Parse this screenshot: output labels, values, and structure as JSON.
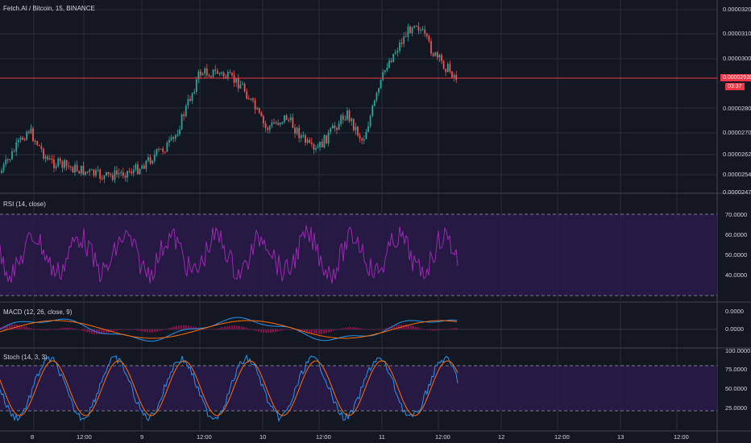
{
  "header": {
    "symbol_line": "Fetch.AI / Bitcoin, 15, BINANCE"
  },
  "price_pane": {
    "axis_labels": [
      "0.00003200",
      "0.00003100",
      "0.00003000",
      "0.00002920",
      "0.00002800",
      "0.00002700",
      "0.00002620",
      "0.00002540",
      "0.00002470"
    ],
    "last_price": "0.00002920",
    "countdown": "03:37"
  },
  "rsi_pane": {
    "title": "RSI (14, close)",
    "axis_labels": [
      "70.0000",
      "60.0000",
      "50.0000",
      "40.0000"
    ]
  },
  "macd_pane": {
    "title": "MACD (12, 26, close, 9)",
    "axis_labels": [
      "0.0000",
      "0.0000"
    ]
  },
  "stoch_pane": {
    "title": "Stoch (14, 3, 3)",
    "axis_labels": [
      "100.0000",
      "75.0000",
      "50.0000",
      "25.0000"
    ]
  },
  "time_axis": {
    "labels": [
      "8",
      "12:00",
      "9",
      "12:00",
      "10",
      "12:00",
      "11",
      "12:00",
      "12",
      "12:00",
      "13",
      "12:00"
    ]
  },
  "colors": {
    "bg": "#131722",
    "up": "#26a69a",
    "down": "#ef5350",
    "grid": "#2a2e39",
    "rsi": "#9c27b0",
    "band": "#2a1a4a",
    "macd": "#2196f3",
    "signal": "#ff6d00",
    "hist": "#880e4f",
    "price_line": "#f23645"
  }
}
